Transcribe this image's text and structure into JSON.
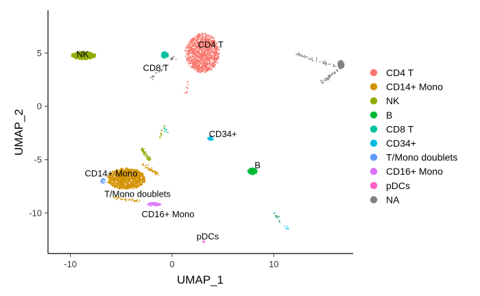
{
  "chart_data": {
    "type": "scatter",
    "title": "",
    "xlabel": "UMAP_1",
    "ylabel": "UMAP_2",
    "xlim": [
      -12.2,
      17.8
    ],
    "ylim": [
      -13.8,
      9.0
    ],
    "x_ticks": [
      -10,
      0,
      10
    ],
    "y_ticks": [
      5,
      0,
      -5,
      -10
    ],
    "grid": false,
    "legend_position": "right",
    "legend": [
      {
        "name": "CD4 T",
        "color": "#F8766D"
      },
      {
        "name": "CD14+ Mono",
        "color": "#D39200"
      },
      {
        "name": "NK",
        "color": "#93AA00"
      },
      {
        "name": "B",
        "color": "#00BA38"
      },
      {
        "name": "CD8 T",
        "color": "#00C19F"
      },
      {
        "name": "CD34+",
        "color": "#00B9E3"
      },
      {
        "name": "T/Mono doublets",
        "color": "#619CFF"
      },
      {
        "name": "CD16+ Mono",
        "color": "#DB72FB"
      },
      {
        "name": "pDCs",
        "color": "#FF61C3"
      },
      {
        "name": "NA",
        "color": "#808080"
      }
    ],
    "cluster_labels": [
      {
        "text": "CD4 T",
        "x": 3.8,
        "y": 5.8
      },
      {
        "text": "NK",
        "x": -8.8,
        "y": 4.9
      },
      {
        "text": "CD8 T",
        "x": -1.6,
        "y": 3.6
      },
      {
        "text": "CD34+",
        "x": 5.0,
        "y": -2.6
      },
      {
        "text": "B",
        "x": 8.4,
        "y": -5.5
      },
      {
        "text": "CD14+ Mono",
        "x": -6.0,
        "y": -6.3
      },
      {
        "text": "T/Mono doublets",
        "x": -3.4,
        "y": -8.2
      },
      {
        "text": "CD16+ Mono",
        "x": -0.4,
        "y": -10.1
      },
      {
        "text": "pDCs",
        "x": 3.5,
        "y": -12.2
      }
    ],
    "clusters": [
      {
        "name": "CD4 T",
        "color": "#F8766D",
        "cx": 3.0,
        "cy": 5.0,
        "rx": 3.2,
        "ry": 3.5,
        "n": 1400
      },
      {
        "name": "CD14+ Mono",
        "color": "#D39200",
        "cx": -4.5,
        "cy": -6.8,
        "rx": 3.6,
        "ry": 1.9,
        "n": 1300
      },
      {
        "name": "NK",
        "color": "#93AA00",
        "cx": -8.7,
        "cy": 4.75,
        "rx": 2.3,
        "ry": 0.75,
        "n": 450
      },
      {
        "name": "B",
        "color": "#00BA38",
        "cx": 7.9,
        "cy": -6.1,
        "rx": 0.9,
        "ry": 0.6,
        "n": 220
      },
      {
        "name": "CD8 T",
        "color": "#00C19F",
        "cx": -0.7,
        "cy": 4.8,
        "rx": 0.7,
        "ry": 0.6,
        "n": 110
      },
      {
        "name": "CD34+",
        "color": "#00B9E3",
        "cx": 3.8,
        "cy": -3.0,
        "rx": 0.6,
        "ry": 0.4,
        "n": 40
      },
      {
        "name": "T/Mono doublets",
        "color": "#619CFF",
        "cx": -6.8,
        "cy": -7.0,
        "rx": 0.5,
        "ry": 0.5,
        "n": 25
      },
      {
        "name": "CD16+ Mono",
        "color": "#DB72FB",
        "cx": -1.8,
        "cy": -9.2,
        "rx": 1.3,
        "ry": 0.35,
        "n": 90
      },
      {
        "name": "pDCs",
        "color": "#FF61C3",
        "cx": 3.1,
        "cy": -12.7,
        "rx": 0.12,
        "ry": 0.2,
        "n": 10
      },
      {
        "name": "NA",
        "color": "#808080",
        "cx": 16.6,
        "cy": 3.9,
        "rx": 0.6,
        "ry": 0.8,
        "n": 180
      }
    ],
    "strands": [
      {
        "color": "#808080",
        "from": [
          12.3,
          4.9
        ],
        "to": [
          16.2,
          3.7
        ],
        "n": 50
      },
      {
        "color": "#808080",
        "from": [
          14.6,
          2.2
        ],
        "to": [
          16.3,
          3.4
        ],
        "n": 40
      },
      {
        "color": "#808080",
        "from": [
          -2.3,
          2.4
        ],
        "to": [
          0.3,
          4.7
        ],
        "n": 35
      },
      {
        "color": "#F8766D",
        "from": [
          1.4,
          1.2
        ],
        "to": [
          1.6,
          2.2
        ],
        "n": 12
      },
      {
        "color": "#93AA00",
        "from": [
          -3.0,
          -4.0
        ],
        "to": [
          -2.2,
          -5.0
        ],
        "n": 60
      },
      {
        "color": "#93AA00",
        "from": [
          -1.2,
          -3.0
        ],
        "to": [
          -0.8,
          -1.8
        ],
        "n": 10
      },
      {
        "color": "#00C19F",
        "from": [
          -0.8,
          -2.0
        ],
        "to": [
          -0.4,
          -2.5
        ],
        "n": 8
      },
      {
        "color": "#D39200",
        "from": [
          -3.0,
          -5.4
        ],
        "to": [
          -1.4,
          -6.4
        ],
        "n": 50
      },
      {
        "color": "#D39200",
        "from": [
          -5.6,
          -8.6
        ],
        "to": [
          -3.2,
          -8.9
        ],
        "n": 40
      },
      {
        "color": "#00B9E3",
        "from": [
          10.0,
          -10.0
        ],
        "to": [
          10.6,
          -10.9
        ],
        "n": 12
      },
      {
        "color": "#00B9E3",
        "from": [
          11.0,
          -11.2
        ],
        "to": [
          11.3,
          -11.6
        ],
        "n": 6
      },
      {
        "color": "#D39200",
        "from": [
          10.2,
          -10.2
        ],
        "to": [
          10.5,
          -10.8
        ],
        "n": 5
      }
    ]
  }
}
